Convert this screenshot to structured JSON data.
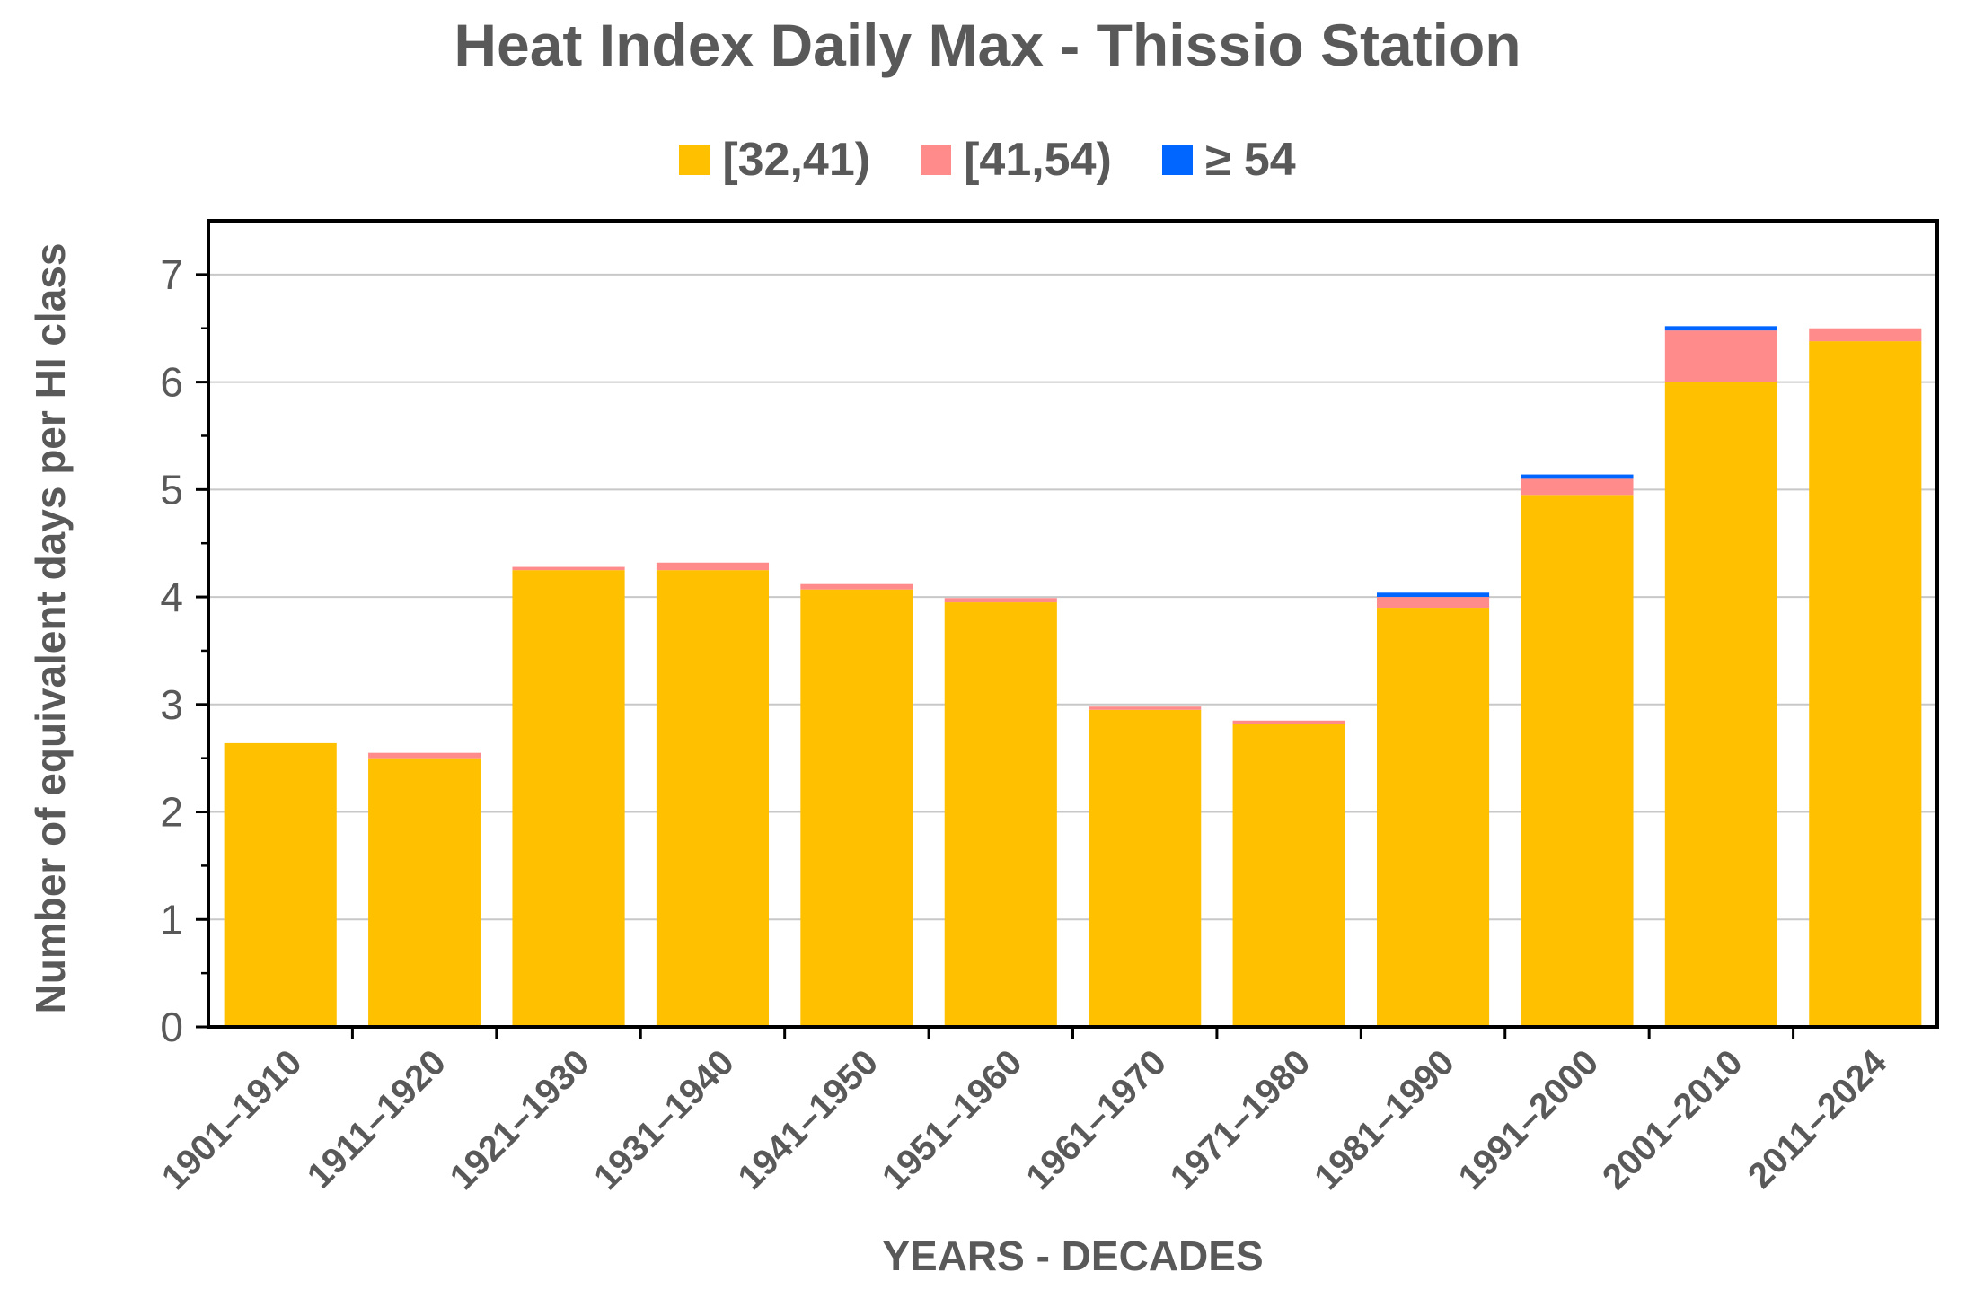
{
  "chart_data": {
    "type": "bar",
    "stacked": true,
    "title": "Heat Index Daily Max - Thissio Station",
    "xlabel": "YEARS - DECADES",
    "ylabel": "Number of equivalent days per HI class",
    "ylim": [
      0,
      7.5
    ],
    "yticks": [
      0,
      1,
      2,
      3,
      4,
      5,
      6,
      7
    ],
    "grid": true,
    "legend_position": "top",
    "categories": [
      "1901–1910",
      "1911–1920",
      "1921–1930",
      "1931–1940",
      "1941–1950",
      "1951–1960",
      "1961–1970",
      "1971–1980",
      "1981–1990",
      "1991–2000",
      "2001–2010",
      "2011–2024"
    ],
    "series": [
      {
        "name": "[32,41)",
        "color": "#FFC000",
        "values": [
          2.64,
          2.5,
          4.25,
          4.25,
          4.07,
          3.95,
          2.95,
          2.82,
          3.9,
          4.95,
          6.0,
          6.38
        ]
      },
      {
        "name": "[41,54)",
        "color": "#FF8B8B",
        "values": [
          0.0,
          0.05,
          0.03,
          0.07,
          0.05,
          0.04,
          0.03,
          0.03,
          0.1,
          0.15,
          0.48,
          0.12
        ]
      },
      {
        "name": "≥ 54",
        "color": "#0066FF",
        "values": [
          0.0,
          0.0,
          0.0,
          0.0,
          0.0,
          0.0,
          0.0,
          0.0,
          0.04,
          0.04,
          0.04,
          0.0
        ]
      }
    ]
  }
}
